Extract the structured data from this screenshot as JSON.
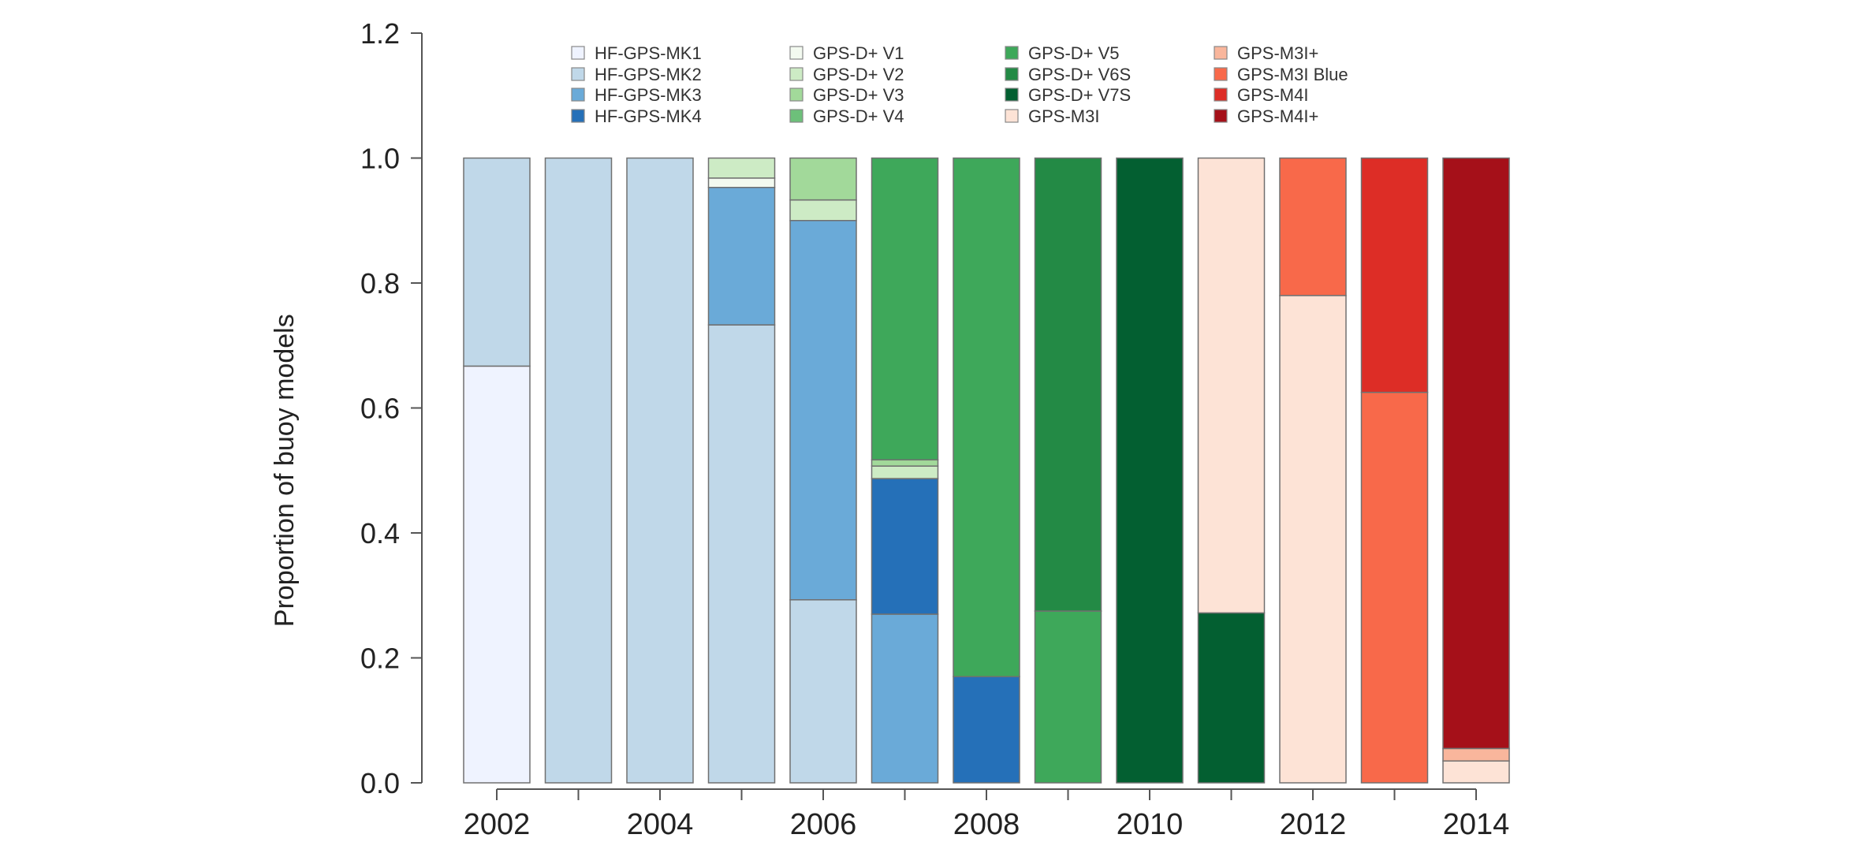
{
  "chart_data": {
    "type": "bar",
    "stacked": true,
    "title": "",
    "xlabel": "",
    "ylabel": "Proportion of buoy models",
    "ylim": [
      0,
      1.2
    ],
    "y_ticks": [
      "0.0",
      "0.2",
      "0.4",
      "0.6",
      "0.8",
      "1.0",
      "1.2"
    ],
    "x_tick_labels": [
      "2002",
      "2004",
      "2006",
      "2008",
      "2010",
      "2012",
      "2014"
    ],
    "categories": [
      "2002",
      "2003",
      "2004",
      "2005",
      "2006",
      "2007",
      "2008",
      "2009",
      "2010",
      "2011",
      "2012",
      "2013",
      "2014"
    ],
    "grid": false,
    "legend_position": "top",
    "series": [
      {
        "name": "HF-GPS-MK1",
        "color": "#eff3ff",
        "values": [
          0.667,
          0,
          0,
          0,
          0,
          0,
          0,
          0,
          0,
          0,
          0,
          0,
          0
        ]
      },
      {
        "name": "HF-GPS-MK2",
        "color": "#c0d8e9",
        "values": [
          0.333,
          1.0,
          1.0,
          0.733,
          0.293,
          0,
          0,
          0,
          0,
          0,
          0,
          0,
          0
        ]
      },
      {
        "name": "HF-GPS-MK3",
        "color": "#6aaad8",
        "values": [
          0,
          0,
          0,
          0.22,
          0.607,
          0.27,
          0,
          0,
          0,
          0,
          0,
          0,
          0
        ]
      },
      {
        "name": "HF-GPS-MK4",
        "color": "#2570b8",
        "values": [
          0,
          0,
          0,
          0,
          0,
          0.217,
          0.17,
          0,
          0,
          0,
          0,
          0,
          0
        ]
      },
      {
        "name": "GPS-D+ V1",
        "color": "#f3faf0",
        "values": [
          0,
          0,
          0,
          0.015,
          0,
          0,
          0,
          0,
          0,
          0,
          0,
          0,
          0
        ]
      },
      {
        "name": "GPS-D+ V2",
        "color": "#cdebc5",
        "values": [
          0,
          0,
          0,
          0.032,
          0.033,
          0.02,
          0,
          0,
          0,
          0,
          0,
          0,
          0
        ]
      },
      {
        "name": "GPS-D+ V3",
        "color": "#a2d99a",
        "values": [
          0,
          0,
          0,
          0,
          0.067,
          0.01,
          0,
          0,
          0,
          0,
          0,
          0,
          0
        ]
      },
      {
        "name": "GPS-D+ V4",
        "color": "#6dc07a",
        "values": [
          0,
          0,
          0,
          0,
          0,
          0,
          0,
          0,
          0,
          0,
          0,
          0,
          0
        ]
      },
      {
        "name": "GPS-D+ V5",
        "color": "#3ea85a",
        "values": [
          0,
          0,
          0,
          0,
          0,
          0.483,
          0.83,
          0.275,
          0,
          0,
          0,
          0,
          0
        ]
      },
      {
        "name": "GPS-D+ V6S",
        "color": "#238a45",
        "values": [
          0,
          0,
          0,
          0,
          0,
          0,
          0,
          0.725,
          0,
          0,
          0,
          0,
          0
        ]
      },
      {
        "name": "GPS-D+ V7S",
        "color": "#035f31",
        "values": [
          0,
          0,
          0,
          0,
          0,
          0,
          0,
          0,
          1.0,
          0.272,
          0,
          0,
          0
        ]
      },
      {
        "name": "GPS-M3I",
        "color": "#fde3d6",
        "values": [
          0,
          0,
          0,
          0,
          0,
          0,
          0,
          0,
          0,
          0.728,
          0.78,
          0,
          0.035
        ]
      },
      {
        "name": "GPS-M3I+",
        "color": "#f9b69c",
        "values": [
          0,
          0,
          0,
          0,
          0,
          0,
          0,
          0,
          0,
          0,
          0,
          0,
          0.02
        ]
      },
      {
        "name": "GPS-M3I Blue",
        "color": "#f8694a",
        "values": [
          0,
          0,
          0,
          0,
          0,
          0,
          0,
          0,
          0,
          0,
          0.22,
          0.625,
          0
        ]
      },
      {
        "name": "GPS-M4I",
        "color": "#dd2d26",
        "values": [
          0,
          0,
          0,
          0,
          0,
          0,
          0,
          0,
          0,
          0,
          0,
          0.375,
          0
        ]
      },
      {
        "name": "GPS-M4I+",
        "color": "#a51019",
        "values": [
          0,
          0,
          0,
          0,
          0,
          0,
          0,
          0,
          0,
          0,
          0,
          0,
          0.945
        ]
      }
    ]
  }
}
